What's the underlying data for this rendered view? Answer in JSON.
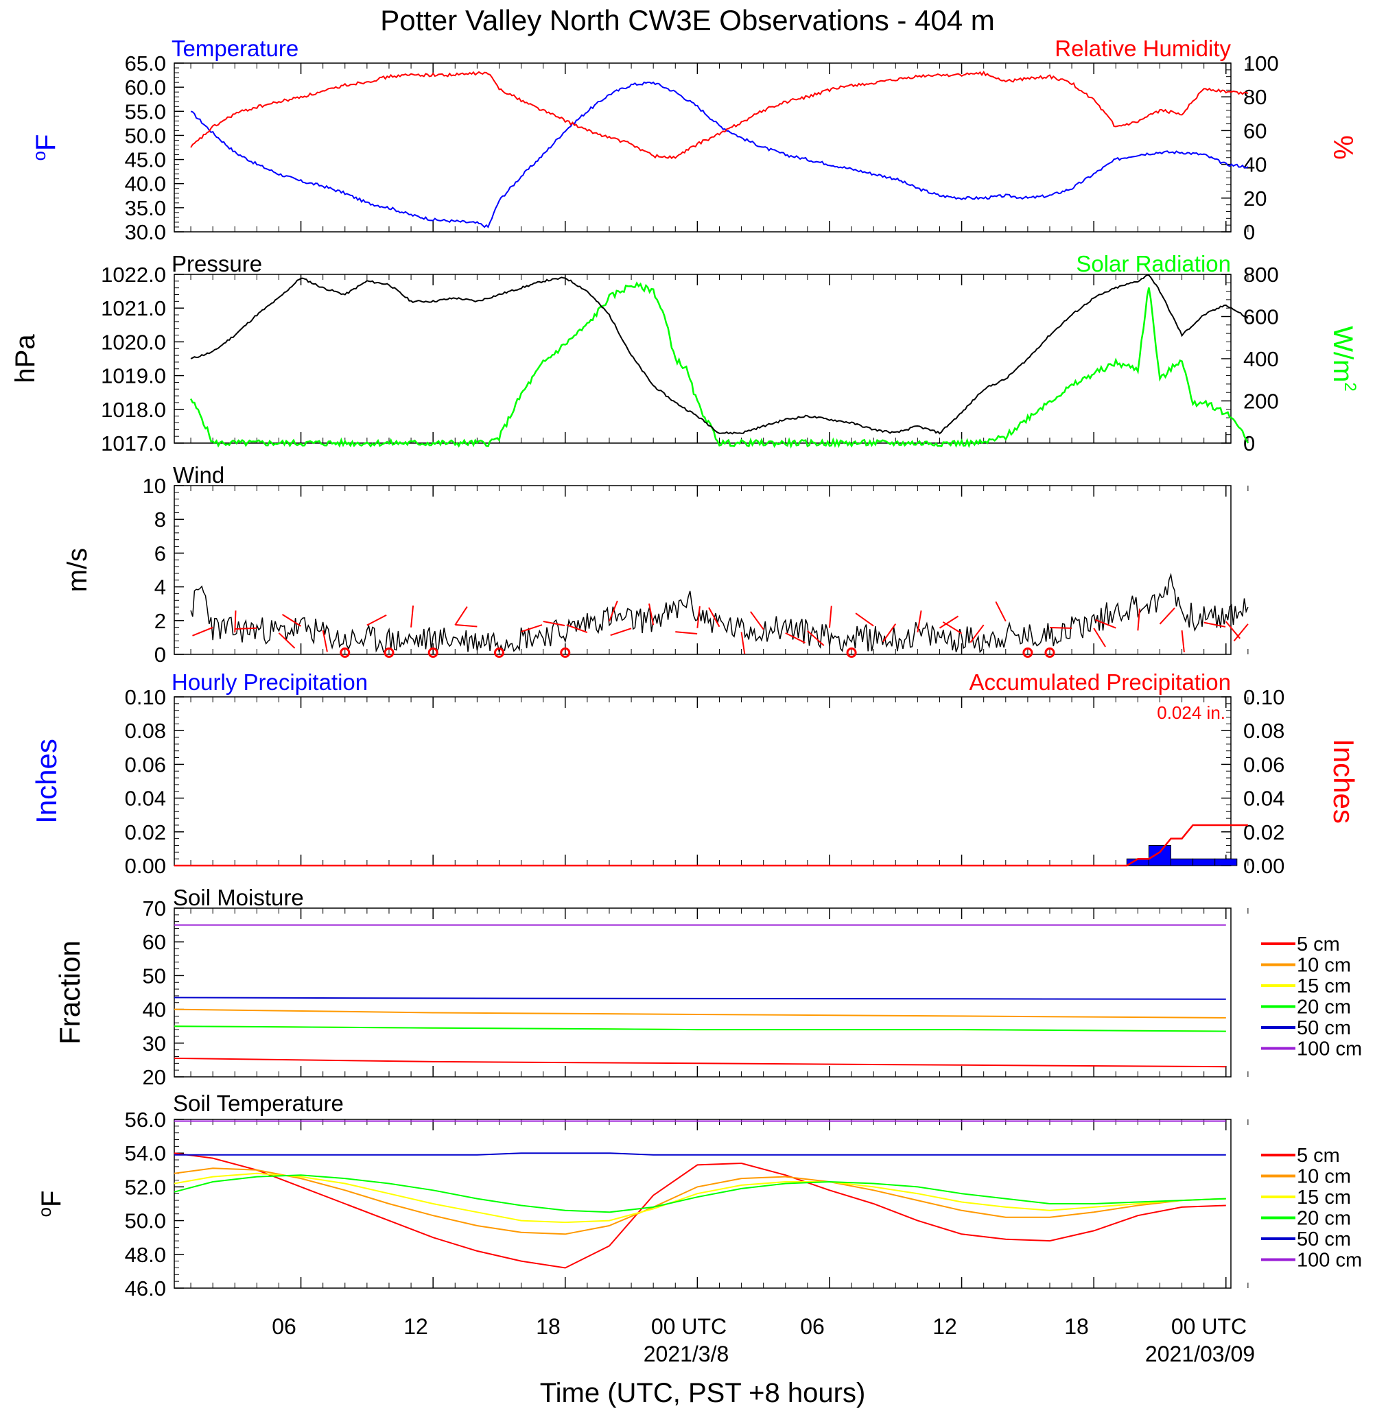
{
  "title": "Potter Valley North CW3E Observations - 404 m",
  "xaxis": {
    "label": "Time (UTC, PST +8 hours)",
    "tick_labels": [
      "06",
      "12",
      "18",
      "00 UTC",
      "06",
      "12",
      "18",
      "00 UTC"
    ],
    "date_labels": [
      "2021/3/8",
      "2021/03/09"
    ]
  },
  "colors": {
    "blue": "#0000ff",
    "red": "#ff0000",
    "green": "#00ff00",
    "black": "#000000",
    "orange": "#ff9900",
    "yellow": "#ffff00",
    "purple": "#9a1ed6",
    "navy": "#0000cc"
  },
  "chart_data": [
    {
      "type": "line",
      "left_title": "Temperature",
      "right_title": "Relative Humidity",
      "left_ylabel": "oF",
      "right_ylabel": "%",
      "left_ylim": [
        30,
        65
      ],
      "left_ticks": [
        "30.0",
        "35.0",
        "40.0",
        "45.0",
        "50.0",
        "55.0",
        "60.0",
        "65.0"
      ],
      "right_ylim": [
        0,
        100
      ],
      "right_ticks": [
        "0",
        "20",
        "40",
        "60",
        "80",
        "100"
      ],
      "x_hours": [
        1,
        2,
        3,
        4,
        5,
        6,
        7,
        8,
        9,
        10,
        11,
        12,
        13,
        14,
        14.5,
        15,
        16,
        17,
        18,
        19,
        20,
        21,
        22,
        23,
        24,
        25,
        26,
        27,
        28,
        29,
        30,
        31,
        32,
        33,
        34,
        35,
        36,
        37,
        38,
        39,
        40,
        41,
        42,
        43,
        44,
        45,
        46,
        47,
        48,
        49
      ],
      "series": [
        {
          "name": "Temperature",
          "axis": "left",
          "color": "#0000ff",
          "values": [
            55.0,
            50.5,
            46.5,
            44.0,
            42.0,
            40.5,
            39.5,
            38.0,
            36.0,
            35.0,
            33.5,
            32.5,
            32.2,
            31.8,
            31.0,
            36.5,
            41.5,
            46.0,
            51.0,
            55.0,
            58.5,
            60.5,
            61.0,
            59.0,
            56.0,
            52.0,
            49.5,
            47.5,
            46.0,
            45.0,
            44.0,
            43.0,
            42.0,
            41.0,
            39.0,
            37.5,
            37.0,
            37.0,
            37.5,
            37.0,
            37.5,
            39.0,
            42.0,
            45.0,
            46.0,
            46.5,
            46.5,
            46.0,
            44.0,
            43.5
          ]
        },
        {
          "name": "Relative Humidity",
          "axis": "right",
          "color": "#ff0000",
          "values": [
            50.0,
            62.0,
            70.0,
            74.0,
            77.0,
            80.0,
            83.0,
            87.0,
            89.0,
            92.0,
            93.0,
            93.0,
            93.0,
            94.0,
            94.0,
            85.0,
            78.0,
            72.0,
            66.0,
            60.0,
            56.0,
            52.0,
            45.0,
            44.0,
            52.0,
            58.0,
            65.0,
            72.0,
            77.0,
            80.0,
            84.0,
            87.0,
            88.0,
            90.0,
            92.0,
            93.0,
            93.0,
            94.0,
            89.0,
            91.0,
            92.0,
            88.0,
            78.0,
            62.0,
            65.0,
            72.0,
            70.0,
            85.0,
            83.0,
            82.0
          ]
        }
      ]
    },
    {
      "type": "line",
      "left_title": "Pressure",
      "right_title": "Solar Radiation",
      "left_ylabel": "hPa",
      "right_ylabel": "W/m2",
      "left_ylim": [
        1017,
        1022
      ],
      "left_ticks": [
        "1017.0",
        "1018.0",
        "1019.0",
        "1020.0",
        "1021.0",
        "1022.0"
      ],
      "right_ylim": [
        0,
        800
      ],
      "right_ticks": [
        "0",
        "200",
        "400",
        "600",
        "800"
      ],
      "pressure": {
        "x_hours": [
          1,
          2,
          3,
          4,
          5,
          6,
          7,
          8,
          9,
          10,
          11,
          12,
          13,
          14,
          15,
          16,
          17,
          18,
          19,
          20,
          21,
          22,
          23,
          24,
          25,
          26,
          27,
          28,
          29,
          30,
          31,
          32,
          33,
          34,
          35,
          36,
          37,
          38,
          39,
          40,
          41,
          42,
          43,
          44,
          44.5,
          45,
          46,
          47,
          48,
          49
        ],
        "values": [
          1019.5,
          1019.7,
          1020.2,
          1020.8,
          1021.3,
          1021.9,
          1021.6,
          1021.4,
          1021.8,
          1021.7,
          1021.2,
          1021.2,
          1021.3,
          1021.2,
          1021.4,
          1021.6,
          1021.8,
          1021.9,
          1021.5,
          1020.8,
          1019.6,
          1018.7,
          1018.2,
          1017.8,
          1017.3,
          1017.3,
          1017.5,
          1017.7,
          1017.8,
          1017.7,
          1017.6,
          1017.4,
          1017.3,
          1017.5,
          1017.3,
          1017.9,
          1018.6,
          1018.9,
          1019.5,
          1020.2,
          1020.8,
          1021.3,
          1021.6,
          1021.8,
          1022.0,
          1021.5,
          1020.2,
          1020.8,
          1021.1,
          1020.7
        ],
        "color": "#000000"
      },
      "solar": {
        "x_hours": [
          1,
          1.5,
          2,
          14.5,
          15,
          16,
          17,
          18,
          19,
          20,
          21,
          22,
          22.5,
          23,
          23.5,
          24,
          25,
          26,
          27,
          37,
          38,
          39,
          40,
          41,
          42,
          43,
          44,
          44.5,
          45,
          46,
          46.5,
          47,
          48,
          48.5,
          49
        ],
        "values": [
          210,
          120,
          0,
          0,
          25,
          230,
          380,
          470,
          560,
          690,
          750,
          725,
          600,
          400,
          350,
          190,
          0,
          0,
          0,
          0,
          30,
          120,
          200,
          270,
          330,
          380,
          350,
          750,
          300,
          400,
          180,
          200,
          140,
          100,
          0
        ],
        "color": "#00ff00"
      }
    },
    {
      "type": "line",
      "left_title": "Wind",
      "left_ylabel": "m/s",
      "left_ylim": [
        0,
        10
      ],
      "left_ticks": [
        "0",
        "2",
        "4",
        "6",
        "8",
        "10"
      ],
      "speed": {
        "x_hours": [
          1,
          1.5,
          2,
          3,
          4,
          5,
          6,
          7,
          8,
          9,
          10,
          11,
          12,
          13,
          14,
          15,
          16,
          17,
          18,
          19,
          20,
          21,
          22,
          23,
          23.5,
          24,
          25,
          26,
          27,
          28,
          29,
          30,
          31,
          32,
          33,
          34,
          35,
          36,
          37,
          38,
          39,
          40,
          41,
          42,
          43,
          44,
          45,
          45.5,
          46,
          47,
          48,
          49
        ],
        "values": [
          2.6,
          4.0,
          1.6,
          1.4,
          1.5,
          1.3,
          1.6,
          1.2,
          0.8,
          0.9,
          0.8,
          0.8,
          0.9,
          0.9,
          0.8,
          0.9,
          1.0,
          1.2,
          1.4,
          1.9,
          2.2,
          2.0,
          2.1,
          2.5,
          3.3,
          2.4,
          1.8,
          1.4,
          1.5,
          1.6,
          1.3,
          1.1,
          0.9,
          1.0,
          0.9,
          1.2,
          1.0,
          0.9,
          0.9,
          1.1,
          1.0,
          1.2,
          1.6,
          1.9,
          2.6,
          2.9,
          3.0,
          4.6,
          2.4,
          2.1,
          2.2,
          2.8
        ],
        "color": "#000000"
      },
      "calm_hours": [
        8,
        10,
        12,
        15,
        18,
        31,
        39,
        40
      ],
      "barb_hours": [
        2,
        3,
        4,
        5,
        6,
        7,
        9,
        11,
        13,
        14,
        16,
        17,
        19,
        20,
        21,
        22,
        23,
        24,
        25,
        26,
        27,
        28,
        29,
        30,
        32,
        33,
        34,
        35,
        36,
        37,
        38,
        41,
        42,
        43,
        44,
        45,
        46,
        47,
        48,
        49
      ],
      "barb_color": "#ff0000"
    },
    {
      "type": "bar",
      "left_title": "Hourly Precipitation",
      "right_title": "Accumulated Precipitation",
      "total_label": "0.024 in.",
      "left_ylabel": "Inches",
      "right_ylabel": "Inches",
      "left_ylim": [
        0,
        0.1
      ],
      "left_ticks": [
        "0.00",
        "0.02",
        "0.04",
        "0.06",
        "0.08",
        "0.10"
      ],
      "right_ylim": [
        0,
        0.1
      ],
      "right_ticks": [
        "0.00",
        "0.02",
        "0.04",
        "0.06",
        "0.08",
        "0.10"
      ],
      "hourly": {
        "x_hours": [
          44,
          45,
          46,
          47,
          48
        ],
        "values": [
          0.004,
          0.012,
          0.004,
          0.004,
          0.004
        ],
        "color": "#0000ff"
      },
      "accumulated": {
        "x_hours": [
          0,
          43.5,
          44,
          44.5,
          45,
          45.5,
          46,
          46.5,
          47,
          49
        ],
        "values": [
          0,
          0,
          0.004,
          0.004,
          0.008,
          0.016,
          0.016,
          0.024,
          0.024,
          0.024
        ],
        "color": "#ff0000"
      }
    },
    {
      "type": "line",
      "left_title": "Soil Moisture",
      "left_ylabel": "Fraction",
      "left_ylim": [
        20,
        70
      ],
      "left_ticks": [
        "20",
        "30",
        "40",
        "50",
        "60",
        "70"
      ],
      "x_hours": [
        0,
        12,
        24,
        36,
        48
      ],
      "series": [
        {
          "name": "5 cm",
          "color": "#ff0000",
          "values": [
            25.5,
            24.5,
            24.0,
            23.5,
            23.0
          ]
        },
        {
          "name": "10 cm",
          "color": "#ff9900",
          "values": [
            40.0,
            39.0,
            38.5,
            38.0,
            37.5
          ]
        },
        {
          "name": "15 cm",
          "color": "#ffff00",
          "values": [
            35.0,
            34.5,
            34.0,
            34.0,
            33.5
          ]
        },
        {
          "name": "20 cm",
          "color": "#00ff00",
          "values": [
            35.0,
            34.5,
            34.0,
            34.0,
            33.5
          ]
        },
        {
          "name": "50 cm",
          "color": "#0000cc",
          "values": [
            43.5,
            43.3,
            43.2,
            43.1,
            43.0
          ]
        },
        {
          "name": "100 cm",
          "color": "#9a1ed6",
          "values": [
            65.0,
            65.0,
            65.0,
            65.0,
            65.0
          ]
        }
      ]
    },
    {
      "type": "line",
      "left_title": "Soil Temperature",
      "left_ylabel": "oF",
      "left_ylim": [
        46,
        56
      ],
      "left_ticks": [
        "46.0",
        "48.0",
        "50.0",
        "52.0",
        "54.0",
        "56.0"
      ],
      "x_hours": [
        0,
        2,
        4,
        6,
        8,
        10,
        12,
        14,
        16,
        18,
        20,
        22,
        24,
        26,
        28,
        30,
        32,
        34,
        36,
        38,
        40,
        42,
        44,
        46,
        48
      ],
      "series": [
        {
          "name": "5 cm",
          "color": "#ff0000",
          "values": [
            54.0,
            53.7,
            53.0,
            52.0,
            51.0,
            50.0,
            49.0,
            48.2,
            47.6,
            47.2,
            48.5,
            51.5,
            53.3,
            53.4,
            52.7,
            51.8,
            51.0,
            50.0,
            49.2,
            48.9,
            48.8,
            49.4,
            50.3,
            50.8,
            50.9
          ]
        },
        {
          "name": "10 cm",
          "color": "#ff9900",
          "values": [
            52.8,
            53.1,
            53.0,
            52.5,
            51.8,
            51.0,
            50.3,
            49.7,
            49.3,
            49.2,
            49.7,
            50.8,
            52.0,
            52.5,
            52.6,
            52.3,
            51.8,
            51.2,
            50.6,
            50.2,
            50.2,
            50.5,
            50.9,
            51.2,
            51.3
          ]
        },
        {
          "name": "15 cm",
          "color": "#ffff00",
          "values": [
            52.2,
            52.6,
            52.8,
            52.6,
            52.2,
            51.6,
            51.0,
            50.5,
            50.0,
            49.9,
            50.0,
            50.7,
            51.6,
            52.1,
            52.3,
            52.3,
            52.0,
            51.6,
            51.1,
            50.8,
            50.6,
            50.8,
            51.0,
            51.2,
            51.3
          ]
        },
        {
          "name": "20 cm",
          "color": "#00ff00",
          "values": [
            51.7,
            52.3,
            52.6,
            52.7,
            52.5,
            52.2,
            51.8,
            51.3,
            50.9,
            50.6,
            50.5,
            50.8,
            51.4,
            51.9,
            52.2,
            52.3,
            52.2,
            52.0,
            51.6,
            51.3,
            51.0,
            51.0,
            51.1,
            51.2,
            51.3
          ]
        },
        {
          "name": "50 cm",
          "color": "#0000cc",
          "values": [
            53.9,
            53.9,
            53.9,
            53.9,
            53.9,
            53.9,
            53.9,
            53.9,
            54.0,
            54.0,
            54.0,
            53.9,
            53.9,
            53.9,
            53.9,
            53.9,
            53.9,
            53.9,
            53.9,
            53.9,
            53.9,
            53.9,
            53.9,
            53.9,
            53.9
          ]
        },
        {
          "name": "100 cm",
          "color": "#9a1ed6",
          "values": [
            55.9,
            55.9,
            55.9,
            55.9,
            55.9,
            55.9,
            55.9,
            55.9,
            55.9,
            55.9,
            55.9,
            55.9,
            55.9,
            55.9,
            55.9,
            55.9,
            55.9,
            55.9,
            55.9,
            55.9,
            55.9,
            55.9,
            55.9,
            55.9,
            55.9
          ]
        }
      ]
    }
  ]
}
